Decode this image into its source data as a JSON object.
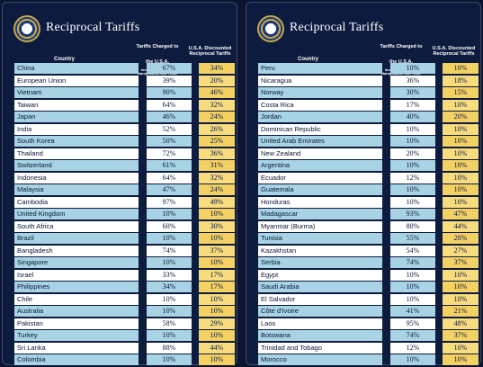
{
  "colors": {
    "background": "#0b1530",
    "panel": "#0d1b3e",
    "row_blue": "#a7d3e5",
    "row_white": "#ffffff",
    "discount_yellow": "#f4d163"
  },
  "header": {
    "title": "Reciprocal Tariffs",
    "country_col": "Country",
    "charged_col": "Tariffs Charged to the U.S.A.",
    "charged_sub": "Including Currency Manipulation and Trade Barriers",
    "discount_col": "U.S.A. Discounted Reciprocal Tariffs",
    "seal_icon": "presidential-seal-icon"
  },
  "left": {
    "rows": [
      {
        "country": "China",
        "charged": "67%",
        "discount": "34%"
      },
      {
        "country": "European Union",
        "charged": "39%",
        "discount": "20%"
      },
      {
        "country": "Vietnam",
        "charged": "90%",
        "discount": "46%"
      },
      {
        "country": "Taiwan",
        "charged": "64%",
        "discount": "32%"
      },
      {
        "country": "Japan",
        "charged": "46%",
        "discount": "24%"
      },
      {
        "country": "India",
        "charged": "52%",
        "discount": "26%"
      },
      {
        "country": "South Korea",
        "charged": "50%",
        "discount": "25%"
      },
      {
        "country": "Thailand",
        "charged": "72%",
        "discount": "36%"
      },
      {
        "country": "Switzerland",
        "charged": "61%",
        "discount": "31%"
      },
      {
        "country": "Indonesia",
        "charged": "64%",
        "discount": "32%"
      },
      {
        "country": "Malaysia",
        "charged": "47%",
        "discount": "24%"
      },
      {
        "country": "Cambodia",
        "charged": "97%",
        "discount": "49%"
      },
      {
        "country": "United Kingdom",
        "charged": "10%",
        "discount": "10%"
      },
      {
        "country": "South Africa",
        "charged": "60%",
        "discount": "30%"
      },
      {
        "country": "Brazil",
        "charged": "10%",
        "discount": "10%"
      },
      {
        "country": "Bangladesh",
        "charged": "74%",
        "discount": "37%"
      },
      {
        "country": "Singapore",
        "charged": "10%",
        "discount": "10%"
      },
      {
        "country": "Israel",
        "charged": "33%",
        "discount": "17%"
      },
      {
        "country": "Philippines",
        "charged": "34%",
        "discount": "17%"
      },
      {
        "country": "Chile",
        "charged": "10%",
        "discount": "10%"
      },
      {
        "country": "Australia",
        "charged": "10%",
        "discount": "10%"
      },
      {
        "country": "Pakistan",
        "charged": "58%",
        "discount": "29%"
      },
      {
        "country": "Turkey",
        "charged": "10%",
        "discount": "10%"
      },
      {
        "country": "Sri Lanka",
        "charged": "88%",
        "discount": "44%"
      },
      {
        "country": "Colombia",
        "charged": "10%",
        "discount": "10%"
      }
    ]
  },
  "right": {
    "rows": [
      {
        "country": "Peru",
        "charged": "10%",
        "discount": "10%"
      },
      {
        "country": "Nicaragua",
        "charged": "36%",
        "discount": "18%"
      },
      {
        "country": "Norway",
        "charged": "30%",
        "discount": "15%"
      },
      {
        "country": "Costa Rica",
        "charged": "17%",
        "discount": "10%"
      },
      {
        "country": "Jordan",
        "charged": "40%",
        "discount": "20%"
      },
      {
        "country": "Dominican Republic",
        "charged": "10%",
        "discount": "10%"
      },
      {
        "country": "United Arab Emirates",
        "charged": "10%",
        "discount": "10%"
      },
      {
        "country": "New Zealand",
        "charged": "20%",
        "discount": "10%"
      },
      {
        "country": "Argentina",
        "charged": "10%",
        "discount": "10%"
      },
      {
        "country": "Ecuador",
        "charged": "12%",
        "discount": "10%"
      },
      {
        "country": "Guatemala",
        "charged": "10%",
        "discount": "10%"
      },
      {
        "country": "Honduras",
        "charged": "10%",
        "discount": "10%"
      },
      {
        "country": "Madagascar",
        "charged": "93%",
        "discount": "47%"
      },
      {
        "country": "Myanmar (Burma)",
        "charged": "88%",
        "discount": "44%"
      },
      {
        "country": "Tunisia",
        "charged": "55%",
        "discount": "28%"
      },
      {
        "country": "Kazakhstan",
        "charged": "54%",
        "discount": "27%"
      },
      {
        "country": "Serbia",
        "charged": "74%",
        "discount": "37%"
      },
      {
        "country": "Egypt",
        "charged": "10%",
        "discount": "10%"
      },
      {
        "country": "Saudi Arabia",
        "charged": "10%",
        "discount": "10%"
      },
      {
        "country": "El Salvador",
        "charged": "10%",
        "discount": "10%"
      },
      {
        "country": "Côte d'Ivoire",
        "charged": "41%",
        "discount": "21%"
      },
      {
        "country": "Laos",
        "charged": "95%",
        "discount": "48%"
      },
      {
        "country": "Botswana",
        "charged": "74%",
        "discount": "37%"
      },
      {
        "country": "Trinidad and Tobago",
        "charged": "12%",
        "discount": "10%"
      },
      {
        "country": "Morocco",
        "charged": "10%",
        "discount": "10%"
      }
    ]
  }
}
